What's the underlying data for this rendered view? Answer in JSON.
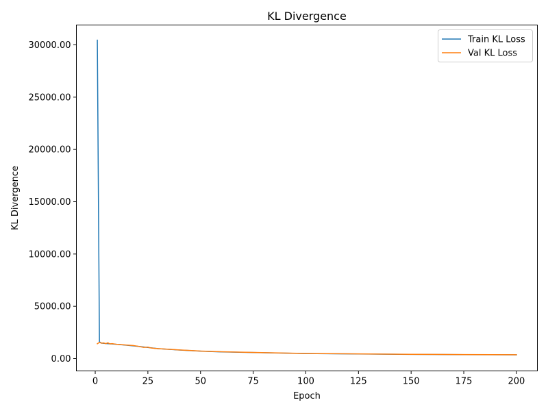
{
  "chart_data": {
    "type": "line",
    "title": "KL Divergence",
    "xlabel": "Epoch",
    "ylabel": "KL Divergence",
    "xlim": [
      -8.95,
      209.95
    ],
    "ylim": [
      -1180,
      31900
    ],
    "x_ticks": [
      0,
      25,
      50,
      75,
      100,
      125,
      150,
      175,
      200
    ],
    "y_ticks": [
      0,
      5000,
      10000,
      15000,
      20000,
      25000,
      30000
    ],
    "y_tick_labels": [
      "0.00",
      "5000.00",
      "10000.00",
      "15000.00",
      "20000.00",
      "25000.00",
      "30000.00"
    ],
    "grid": false,
    "legend_position": "upper right",
    "series": [
      {
        "name": "Train KL Loss",
        "color": "#1f77b4",
        "points": [
          [
            1,
            30450
          ],
          [
            2,
            1600
          ],
          [
            3,
            1480
          ],
          [
            5,
            1440
          ],
          [
            8,
            1400
          ],
          [
            10,
            1370
          ],
          [
            15,
            1280
          ],
          [
            20,
            1180
          ],
          [
            25,
            1060
          ],
          [
            30,
            950
          ],
          [
            35,
            880
          ],
          [
            40,
            820
          ],
          [
            50,
            710
          ],
          [
            60,
            640
          ],
          [
            75,
            580
          ],
          [
            100,
            480
          ],
          [
            125,
            440
          ],
          [
            150,
            400
          ],
          [
            175,
            380
          ],
          [
            200,
            360
          ]
        ]
      },
      {
        "name": "Val KL Loss",
        "color": "#ff7f0e",
        "points": [
          [
            1,
            1420
          ],
          [
            2,
            1550
          ],
          [
            3,
            1470
          ],
          [
            4,
            1500
          ],
          [
            5,
            1430
          ],
          [
            6,
            1510
          ],
          [
            7,
            1400
          ],
          [
            8,
            1430
          ],
          [
            10,
            1370
          ],
          [
            12,
            1340
          ],
          [
            15,
            1290
          ],
          [
            18,
            1250
          ],
          [
            20,
            1190
          ],
          [
            23,
            1070
          ],
          [
            25,
            1100
          ],
          [
            26,
            1030
          ],
          [
            28,
            980
          ],
          [
            30,
            950
          ],
          [
            35,
            890
          ],
          [
            40,
            830
          ],
          [
            45,
            780
          ],
          [
            50,
            720
          ],
          [
            60,
            650
          ],
          [
            75,
            590
          ],
          [
            100,
            490
          ],
          [
            125,
            450
          ],
          [
            150,
            410
          ],
          [
            175,
            385
          ],
          [
            200,
            365
          ]
        ]
      }
    ]
  }
}
